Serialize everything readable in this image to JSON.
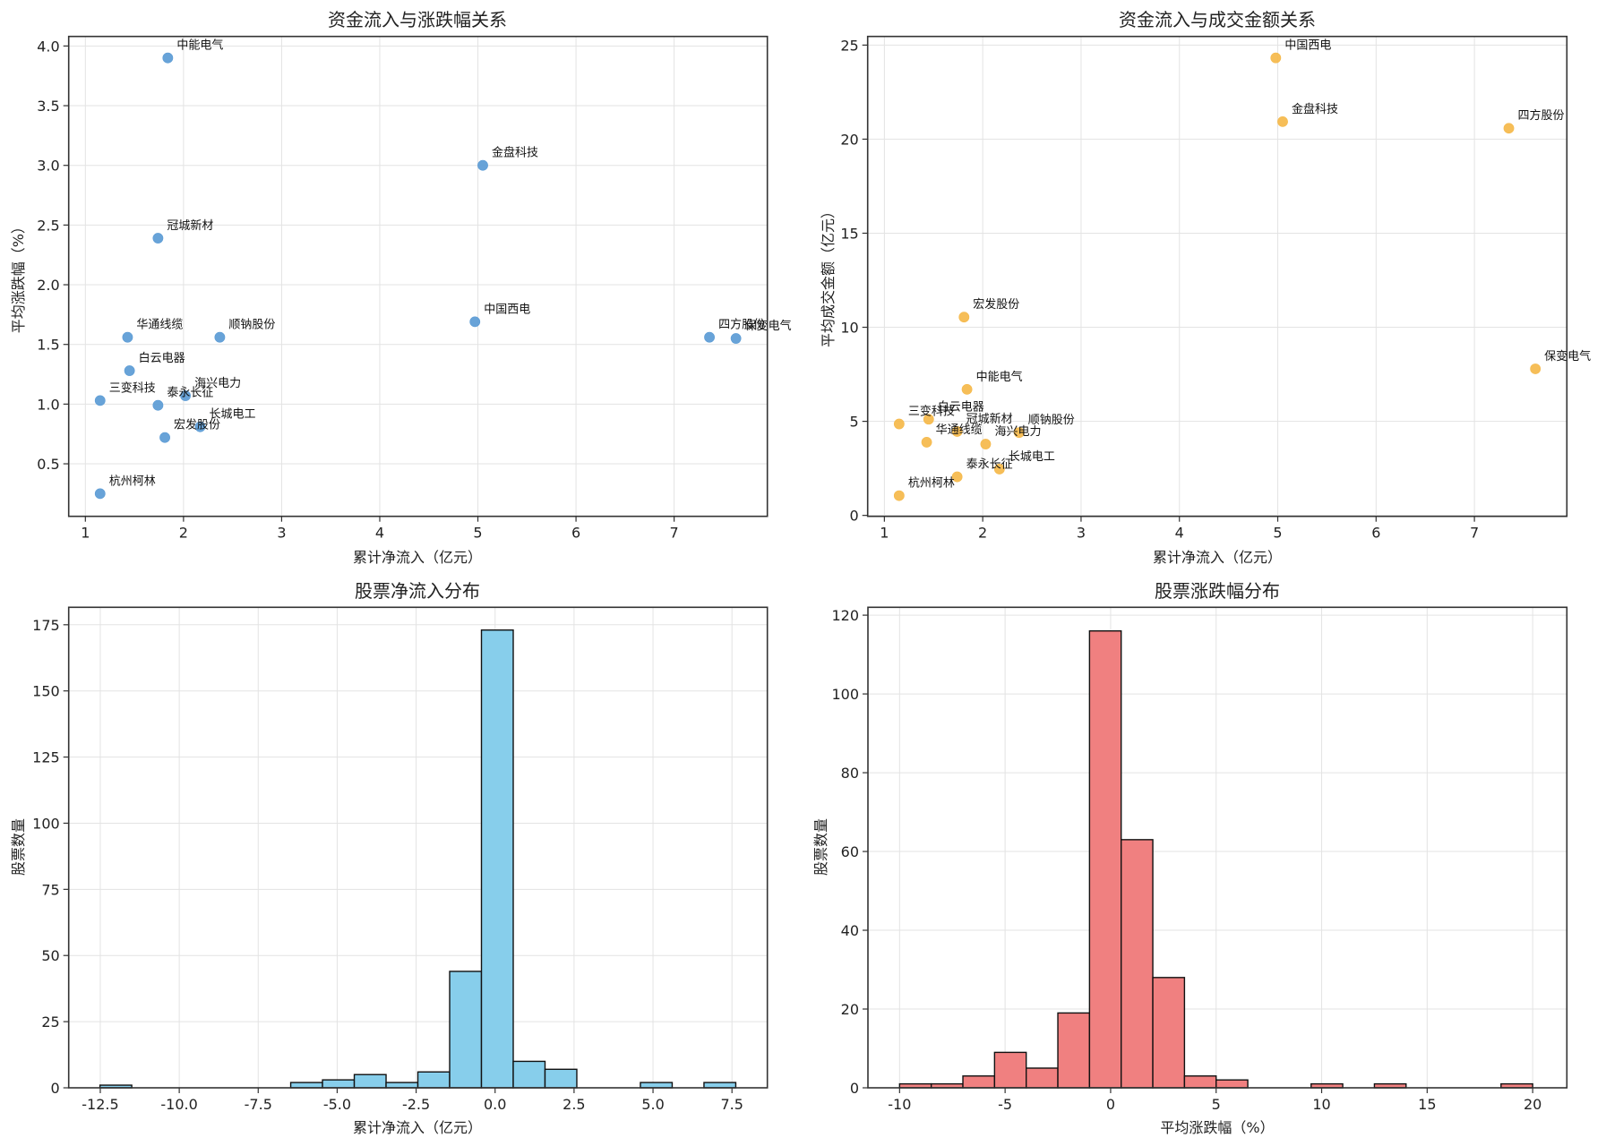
{
  "figure": {
    "panel_count": 4
  },
  "chart_data": [
    {
      "id": "inflow_vs_change",
      "type": "scatter",
      "title": "资金流入与涨跌幅关系",
      "xlabel": "累计净流入（亿元）",
      "ylabel": "平均涨跌幅（%）",
      "xlim": [
        0.83,
        7.95
      ],
      "ylim": [
        0.06,
        4.08
      ],
      "xticks": [
        1,
        2,
        3,
        4,
        5,
        6,
        7
      ],
      "xtick_labels": [
        "1",
        "2",
        "3",
        "4",
        "5",
        "6",
        "7"
      ],
      "yticks": [
        0.5,
        1.0,
        1.5,
        2.0,
        2.5,
        3.0,
        3.5,
        4.0
      ],
      "ytick_labels": [
        "0.5",
        "1.0",
        "1.5",
        "2.0",
        "2.5",
        "3.0",
        "3.5",
        "4.0"
      ],
      "grid": true,
      "color": "#5b9bd5",
      "points": [
        {
          "label": "中能电气",
          "x": 1.84,
          "y": 3.9
        },
        {
          "label": "金盘科技",
          "x": 5.05,
          "y": 3.0
        },
        {
          "label": "冠城新材",
          "x": 1.74,
          "y": 2.39
        },
        {
          "label": "中国西电",
          "x": 4.97,
          "y": 1.69
        },
        {
          "label": "四方股份",
          "x": 7.36,
          "y": 1.56
        },
        {
          "label": "保变电气",
          "x": 7.63,
          "y": 1.55
        },
        {
          "label": "华通线缆",
          "x": 1.43,
          "y": 1.56
        },
        {
          "label": "顺钠股份",
          "x": 2.37,
          "y": 1.56
        },
        {
          "label": "白云电器",
          "x": 1.45,
          "y": 1.28
        },
        {
          "label": "三变科技",
          "x": 1.15,
          "y": 1.03
        },
        {
          "label": "泰永长征",
          "x": 1.74,
          "y": 0.99
        },
        {
          "label": "海兴电力",
          "x": 2.02,
          "y": 1.07
        },
        {
          "label": "长城电工",
          "x": 2.17,
          "y": 0.81
        },
        {
          "label": "宏发股份",
          "x": 1.81,
          "y": 0.72
        },
        {
          "label": "杭州柯林",
          "x": 1.15,
          "y": 0.25
        }
      ]
    },
    {
      "id": "inflow_vs_turnover",
      "type": "scatter",
      "title": "资金流入与成交金额关系",
      "xlabel": "累计净流入（亿元）",
      "ylabel": "平均成交金额（亿元）",
      "xlim": [
        0.83,
        7.94
      ],
      "ylim": [
        -0.05,
        25.46
      ],
      "xticks": [
        1,
        2,
        3,
        4,
        5,
        6,
        7
      ],
      "xtick_labels": [
        "1",
        "2",
        "3",
        "4",
        "5",
        "6",
        "7"
      ],
      "yticks": [
        0,
        5,
        10,
        15,
        20,
        25
      ],
      "ytick_labels": [
        "0",
        "5",
        "10",
        "15",
        "20",
        "25"
      ],
      "grid": true,
      "color": "#f5b94a",
      "points": [
        {
          "label": "中国西电",
          "x": 4.98,
          "y": 24.32
        },
        {
          "label": "金盘科技",
          "x": 5.05,
          "y": 20.93
        },
        {
          "label": "四方股份",
          "x": 7.35,
          "y": 20.58
        },
        {
          "label": "宏发股份",
          "x": 1.81,
          "y": 10.54
        },
        {
          "label": "保变电气",
          "x": 7.62,
          "y": 7.79
        },
        {
          "label": "中能电气",
          "x": 1.84,
          "y": 6.7
        },
        {
          "label": "白云电器",
          "x": 1.45,
          "y": 5.11
        },
        {
          "label": "三变科技",
          "x": 1.15,
          "y": 4.86
        },
        {
          "label": "冠城新材",
          "x": 1.74,
          "y": 4.46
        },
        {
          "label": "顺钠股份",
          "x": 2.37,
          "y": 4.4
        },
        {
          "label": "华通线缆",
          "x": 1.43,
          "y": 3.89
        },
        {
          "label": "海兴电力",
          "x": 2.03,
          "y": 3.79
        },
        {
          "label": "长城电工",
          "x": 2.17,
          "y": 2.46
        },
        {
          "label": "泰永长征",
          "x": 1.74,
          "y": 2.05
        },
        {
          "label": "杭州柯林",
          "x": 1.15,
          "y": 1.05
        }
      ]
    },
    {
      "id": "inflow_hist",
      "type": "bar",
      "subtype": "histogram",
      "title": "股票净流入分布",
      "xlabel": "累计净流入（亿元）",
      "ylabel": "股票数量",
      "xlim": [
        -13.5,
        8.62
      ],
      "ylim": [
        0,
        181.6
      ],
      "xticks": [
        -12.5,
        -10.0,
        -7.5,
        -5.0,
        -2.5,
        0.0,
        2.5,
        5.0,
        7.5
      ],
      "xtick_labels": [
        "-12.5",
        "-10.0",
        "-7.5",
        "-5.0",
        "-2.5",
        "0.0",
        "2.5",
        "5.0",
        "7.5"
      ],
      "yticks": [
        0,
        25,
        50,
        75,
        100,
        125,
        150,
        175
      ],
      "ytick_labels": [
        "0",
        "25",
        "50",
        "75",
        "100",
        "125",
        "150",
        "175"
      ],
      "grid": true,
      "color": "#87ceeb",
      "bin_start": -12.51,
      "bin_width": 1.0065,
      "counts": [
        1,
        0,
        0,
        0,
        0,
        0,
        2,
        3,
        5,
        2,
        6,
        44,
        173,
        10,
        7,
        0,
        0,
        2,
        0,
        2
      ]
    },
    {
      "id": "change_hist",
      "type": "bar",
      "subtype": "histogram",
      "title": "股票涨跌幅分布",
      "xlabel": "平均涨跌幅（%）",
      "ylabel": "股票数量",
      "xlim": [
        -11.5,
        21.62
      ],
      "ylim": [
        0,
        122.0
      ],
      "xticks": [
        -10,
        -5,
        0,
        5,
        10,
        15,
        20
      ],
      "xtick_labels": [
        "-10",
        "-5",
        "0",
        "5",
        "10",
        "15",
        "20"
      ],
      "yticks": [
        0,
        20,
        40,
        60,
        80,
        100,
        120
      ],
      "ytick_labels": [
        "0",
        "20",
        "40",
        "60",
        "80",
        "100",
        "120"
      ],
      "grid": true,
      "color": "#f08080",
      "bin_start": -10,
      "bin_width": 1.5,
      "counts": [
        1,
        1,
        3,
        9,
        5,
        19,
        116,
        63,
        28,
        3,
        2,
        0,
        0,
        1,
        0,
        1,
        0,
        0,
        0,
        1
      ]
    }
  ]
}
